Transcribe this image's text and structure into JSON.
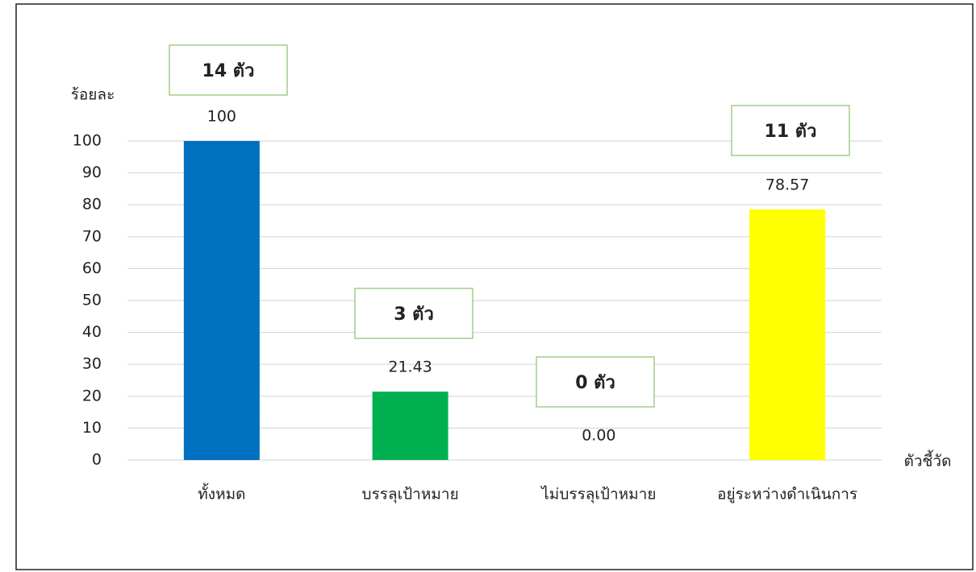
{
  "chart_data": {
    "type": "bar",
    "y_axis_label": "ร้อยละ",
    "x_axis_label": "ตัวชี้วัด",
    "categories": [
      "ทั้งหมด",
      "บรรลุเป้าหมาย",
      "ไม่บรรลุเป้าหมาย",
      "อยู่ระหว่างดำเนินการ"
    ],
    "values": [
      100,
      21.43,
      0,
      78.57
    ],
    "value_labels": [
      "100",
      "21.43",
      "0.00",
      "78.57"
    ],
    "annotations": [
      "14 ตัว",
      "3 ตัว",
      "0 ตัว",
      "11 ตัว"
    ],
    "colors": [
      "#0070c0",
      "#00b050",
      "#00b050",
      "#ffff00"
    ],
    "ylim": [
      0,
      100
    ],
    "yticks": [
      0,
      10,
      20,
      30,
      40,
      50,
      60,
      70,
      80,
      90,
      100
    ],
    "grid": true
  }
}
